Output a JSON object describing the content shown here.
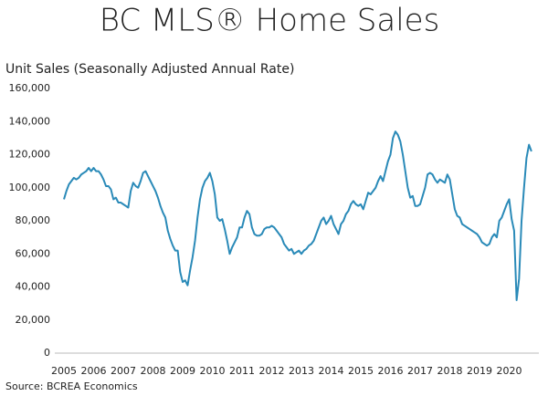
{
  "chart_data": {
    "type": "line",
    "title": "BC MLS® Home Sales",
    "y_label": "Unit Sales (Seasonally Adjusted Annual Rate)",
    "source": "Source: BCREA Economics",
    "categories": [
      "2005",
      null,
      null,
      null,
      null,
      null,
      null,
      null,
      null,
      null,
      null,
      null,
      "2006",
      null,
      null,
      null,
      null,
      null,
      null,
      null,
      null,
      null,
      null,
      null,
      "2007",
      null,
      null,
      null,
      null,
      null,
      null,
      null,
      null,
      null,
      null,
      null,
      "2008",
      null,
      null,
      null,
      null,
      null,
      null,
      null,
      null,
      null,
      null,
      null,
      "2009",
      null,
      null,
      null,
      null,
      null,
      null,
      null,
      null,
      null,
      null,
      null,
      "2010",
      null,
      null,
      null,
      null,
      null,
      null,
      null,
      null,
      null,
      null,
      null,
      "2011",
      null,
      null,
      null,
      null,
      null,
      null,
      null,
      null,
      null,
      null,
      null,
      "2012",
      null,
      null,
      null,
      null,
      null,
      null,
      null,
      null,
      null,
      null,
      null,
      "2013",
      null,
      null,
      null,
      null,
      null,
      null,
      null,
      null,
      null,
      null,
      null,
      "2014",
      null,
      null,
      null,
      null,
      null,
      null,
      null,
      null,
      null,
      null,
      null,
      "2015",
      null,
      null,
      null,
      null,
      null,
      null,
      null,
      null,
      null,
      null,
      null,
      "2016",
      null,
      null,
      null,
      null,
      null,
      null,
      null,
      null,
      null,
      null,
      null,
      "2017",
      null,
      null,
      null,
      null,
      null,
      null,
      null,
      null,
      null,
      null,
      null,
      "2018",
      null,
      null,
      null,
      null,
      null,
      null,
      null,
      null,
      null,
      null,
      null,
      "2019",
      null,
      null,
      null,
      null,
      null,
      null,
      null,
      null,
      null,
      null,
      null,
      "2020",
      null,
      null,
      null,
      null,
      null,
      null,
      null,
      null,
      null
    ],
    "values": [
      93000,
      98000,
      102000,
      104000,
      106000,
      105000,
      106000,
      108000,
      109000,
      110000,
      112000,
      110000,
      112000,
      110000,
      110000,
      108000,
      105000,
      101000,
      101000,
      99000,
      93000,
      94000,
      91000,
      91000,
      90000,
      89000,
      88000,
      98000,
      103000,
      101000,
      100000,
      104000,
      109000,
      110000,
      107000,
      104000,
      101000,
      98000,
      94000,
      89000,
      85000,
      82000,
      74000,
      69000,
      65000,
      62000,
      62000,
      49000,
      43000,
      44000,
      41000,
      50000,
      58000,
      68000,
      82000,
      93000,
      100000,
      104000,
      106000,
      109000,
      104000,
      96000,
      82000,
      80000,
      81000,
      75000,
      68000,
      60000,
      64000,
      67000,
      70000,
      76000,
      76000,
      82000,
      86000,
      84000,
      76000,
      72000,
      71000,
      71000,
      72000,
      75000,
      76000,
      76000,
      77000,
      76000,
      74000,
      72000,
      70000,
      66000,
      64000,
      62000,
      63000,
      60000,
      61000,
      62000,
      60000,
      62000,
      63000,
      65000,
      66000,
      68000,
      72000,
      76000,
      80000,
      82000,
      78000,
      80000,
      83000,
      78000,
      75000,
      72000,
      78000,
      80000,
      84000,
      86000,
      90000,
      92000,
      90000,
      89000,
      90000,
      87000,
      92000,
      97000,
      96000,
      98000,
      100000,
      104000,
      107000,
      104000,
      110000,
      116000,
      120000,
      130000,
      134000,
      132000,
      128000,
      120000,
      110000,
      100000,
      94000,
      95000,
      89000,
      89000,
      90000,
      95000,
      100000,
      108000,
      109000,
      108000,
      105000,
      103000,
      105000,
      104000,
      103000,
      108000,
      105000,
      96000,
      87000,
      83000,
      82000,
      78000,
      77000,
      76000,
      75000,
      74000,
      73000,
      72000,
      70000,
      67000,
      66000,
      65000,
      66000,
      70000,
      72000,
      70000,
      80000,
      82000,
      86000,
      90000,
      93000,
      81000,
      74000,
      32000,
      45000,
      80000,
      100000,
      118000,
      126000,
      122000
    ],
    "color": "#2a8ab8",
    "ylim": [
      0,
      160000
    ],
    "yticks": [
      0,
      {
        "value": 20000,
        "label": "20,000"
      },
      {
        "value": 40000,
        "label": "40,000"
      },
      {
        "value": 60000,
        "label": "60,000"
      },
      {
        "value": 80000,
        "label": "80,000"
      },
      {
        "value": 100000,
        "label": "100,000"
      },
      {
        "value": 120000,
        "label": "120,000"
      },
      {
        "value": 140000,
        "label": "140,000"
      },
      {
        "value": 160000,
        "label": "160,000"
      }
    ],
    "grid": false
  }
}
